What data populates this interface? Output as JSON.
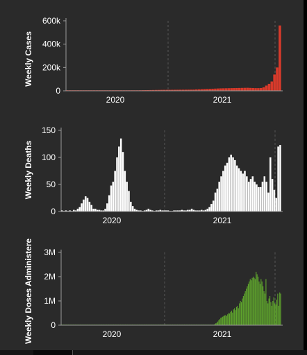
{
  "colors": {
    "background": "#2a2a2a",
    "cases": "#d83a2b",
    "deaths": "#ffffff",
    "doses": "#5fa52d"
  },
  "chart_data": [
    {
      "type": "bar",
      "ylabel": "Weekly Cases",
      "x_ticks": [
        "2020",
        "2021"
      ],
      "y_ticks": [
        "0",
        "200k",
        "400k",
        "600k"
      ],
      "ylim": [
        0,
        600000
      ],
      "grid": "dashed vertical lines at year boundaries",
      "color": "#d83a2b",
      "values": [
        200,
        200,
        300,
        300,
        400,
        400,
        500,
        600,
        700,
        800,
        900,
        1000,
        1100,
        1200,
        1300,
        1500,
        1600,
        1800,
        2000,
        2200,
        2400,
        2600,
        3000,
        3400,
        3800,
        4200,
        4600,
        5000,
        5400,
        5800,
        6200,
        6600,
        7000,
        7400,
        7800,
        8200,
        8400,
        8600,
        8800,
        9000,
        9200,
        9400,
        9600,
        9800,
        10000,
        10200,
        10400,
        10600,
        12000,
        13000,
        14000,
        15000,
        16000,
        17000,
        18000,
        19000,
        20000,
        21000,
        21500,
        22000,
        22500,
        23000,
        23500,
        24000,
        24500,
        25000,
        25500,
        26000,
        25000,
        24000,
        23000,
        23000,
        24000,
        30000,
        45000,
        60000,
        80000,
        140000,
        200000,
        560000
      ]
    },
    {
      "type": "bar",
      "ylabel": "Weekly Deaths",
      "x_ticks": [
        "2020",
        "2021"
      ],
      "y_ticks": [
        "0",
        "50",
        "100",
        "150"
      ],
      "ylim": [
        0,
        150
      ],
      "grid": "dashed vertical lines at year boundaries",
      "color": "#ffffff",
      "values": [
        2,
        0,
        2,
        0,
        2,
        0,
        3,
        2,
        5,
        8,
        15,
        22,
        28,
        25,
        18,
        12,
        5,
        5,
        3,
        3,
        2,
        2,
        5,
        15,
        30,
        48,
        55,
        75,
        100,
        120,
        135,
        110,
        75,
        55,
        38,
        18,
        10,
        5,
        3,
        2,
        2,
        1,
        2,
        3,
        5,
        3,
        2,
        1,
        2,
        2,
        3,
        2,
        2,
        2,
        2,
        1,
        1,
        2,
        2,
        2,
        2,
        3,
        2,
        2,
        3,
        3,
        5,
        3,
        2,
        2,
        2,
        3,
        2,
        3,
        5,
        8,
        14,
        20,
        35,
        42,
        55,
        65,
        75,
        85,
        90,
        100,
        105,
        100,
        95,
        85,
        80,
        75,
        70,
        75,
        65,
        55,
        60,
        65,
        55,
        50,
        45,
        45,
        55,
        65,
        55,
        35,
        100,
        60,
        40,
        25,
        120,
        123
      ]
    },
    {
      "type": "bar",
      "ylabel": "Weekly Doses Administere",
      "x_ticks": [
        "2020",
        "2021"
      ],
      "y_ticks": [
        "0",
        "1M",
        "2M",
        "3M"
      ],
      "ylim": [
        0,
        3000000
      ],
      "grid": "dashed vertical lines at year boundaries",
      "color": "#5fa52d",
      "values": [
        5000,
        5000,
        5000,
        5000,
        5000,
        5000,
        5000,
        5000,
        5000,
        5000,
        5000,
        5000,
        5000,
        5000,
        5000,
        5000,
        5000,
        5000,
        5000,
        5000,
        5000,
        5000,
        5000,
        5000,
        5000,
        5000,
        5000,
        5000,
        5000,
        5000,
        5000,
        5000,
        5000,
        5000,
        5000,
        5000,
        5000,
        5000,
        5000,
        5000,
        5000,
        5000,
        5000,
        5000,
        5000,
        5000,
        5000,
        5000,
        5000,
        5000,
        5000,
        5000,
        5000,
        5000,
        5000,
        5000,
        5000,
        5000,
        5000,
        5000,
        5000,
        5000,
        5000,
        5000,
        5000,
        5000,
        5000,
        5000,
        5000,
        5000,
        5000,
        5000,
        5000,
        5000,
        5000,
        5000,
        5000,
        5000,
        5000,
        5000,
        5000,
        5000,
        5000,
        5000,
        5000,
        5000,
        5000,
        5000,
        5000,
        5000,
        5000,
        5000,
        5000,
        5000,
        5000,
        5000,
        5000,
        5000,
        5000,
        5000,
        5000,
        5000,
        5000,
        5000,
        5000,
        5000,
        5000,
        5000,
        5000,
        5000,
        5000,
        5000,
        5000,
        5000,
        5000,
        5000,
        5000,
        5000,
        5000,
        5000,
        5000,
        5000,
        5000,
        5000,
        5000,
        5000,
        5000,
        5000,
        5000,
        5000,
        5000,
        5000,
        5000,
        5000,
        5000,
        5000,
        5000,
        5000,
        5000,
        5000,
        5000,
        5000,
        5000,
        5000,
        5000,
        5000,
        5000,
        5000,
        5000,
        5000,
        5000,
        5000,
        5000,
        5000,
        5000,
        5000,
        50000,
        80000,
        100000,
        150000,
        200000,
        250000,
        300000,
        320000,
        350000,
        380000,
        400000,
        420000,
        380000,
        450000,
        500000,
        480000,
        550000,
        600000,
        520000,
        650000,
        700000,
        620000,
        750000,
        800000,
        700000,
        900000,
        1000000,
        950000,
        1100000,
        1200000,
        1300000,
        1400000,
        1500000,
        1600000,
        1700000,
        1800000,
        1900000,
        1850000,
        1950000,
        2000000,
        1950000,
        1900000,
        2200000,
        2100000,
        2000000,
        1800000,
        1700000,
        1900000,
        1800000,
        1600000,
        1400000,
        1300000,
        1900000,
        1000000,
        900000,
        1100000,
        1200000,
        950000,
        800000,
        1000000,
        1150000,
        900000,
        850000,
        1050000,
        1300000,
        800000,
        1350000,
        1300000
      ]
    }
  ]
}
